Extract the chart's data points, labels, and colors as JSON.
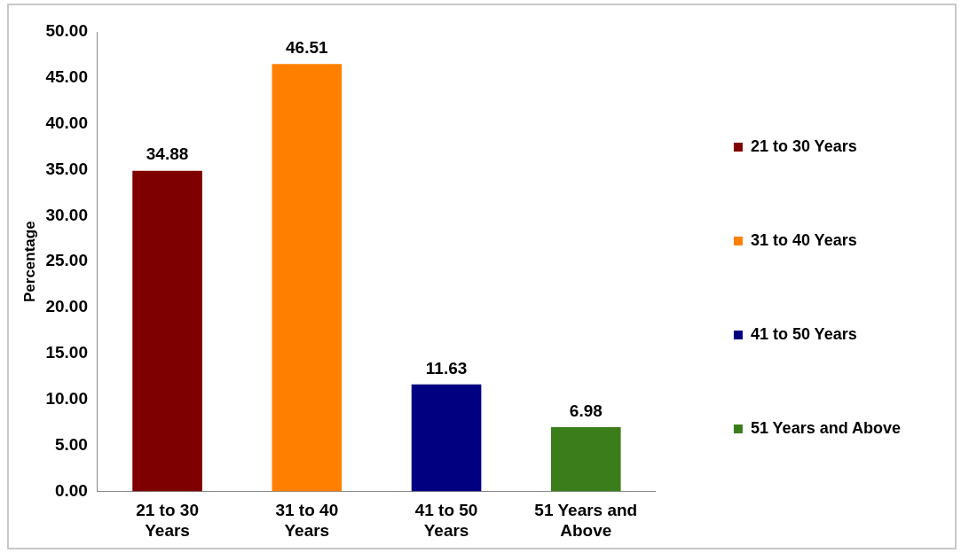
{
  "chart_data": {
    "type": "bar",
    "ylabel": "Percentage",
    "categories": [
      "21 to 30 Years",
      "31 to 40 Years",
      "41 to 50 Years",
      "51 Years and Above"
    ],
    "series": [
      {
        "name": "21 to 30 Years",
        "color": "#7f0000",
        "values": [
          34.88,
          null,
          null,
          null
        ]
      },
      {
        "name": "31 to 40 Years",
        "color": "#ff8000",
        "values": [
          null,
          46.51,
          null,
          null
        ]
      },
      {
        "name": "41 to 50 Years",
        "color": "#000080",
        "values": [
          null,
          null,
          11.63,
          null
        ]
      },
      {
        "name": "51 Years and Above",
        "color": "#3a7d1a",
        "values": [
          null,
          null,
          null,
          6.98
        ]
      }
    ],
    "ylim": [
      0,
      50
    ],
    "yticks": [
      {
        "value": 0,
        "label": "0.00"
      },
      {
        "value": 5,
        "label": "5.00"
      },
      {
        "value": 10,
        "label": "10.00"
      },
      {
        "value": 15,
        "label": "15.00"
      },
      {
        "value": 20,
        "label": "20.00"
      },
      {
        "value": 25,
        "label": "25.00"
      },
      {
        "value": 30,
        "label": "30.00"
      },
      {
        "value": 35,
        "label": "35.00"
      },
      {
        "value": 40,
        "label": "40.00"
      },
      {
        "value": 45,
        "label": "45.00"
      },
      {
        "value": 50,
        "label": "50.00"
      }
    ],
    "data_labels": true,
    "legend": "right",
    "grid": false
  }
}
